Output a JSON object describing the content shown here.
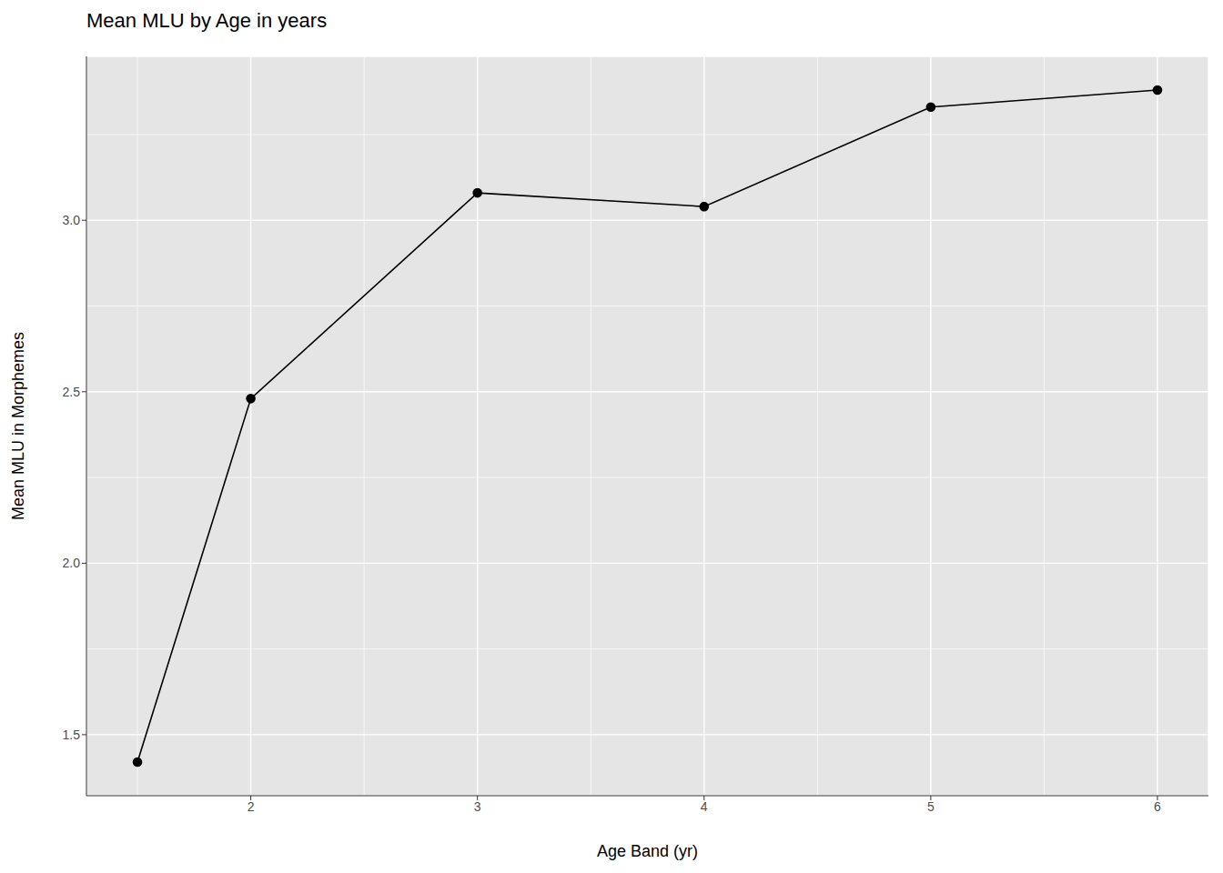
{
  "chart_data": {
    "type": "line",
    "title": "Mean MLU by Age in years",
    "x_label": "Age Band (yr)",
    "y_label": "Mean MLU in Morphemes",
    "x": [
      1.5,
      2,
      3,
      4,
      5,
      6
    ],
    "values": [
      1.42,
      2.48,
      3.08,
      3.04,
      3.33,
      3.38
    ],
    "color": "#000000",
    "marker": "circle",
    "xlim": [
      1.275,
      6.225
    ],
    "xticks": [
      2,
      3,
      4,
      5,
      6
    ],
    "ylim": [
      1.322,
      3.478
    ],
    "yticks": [
      1.5,
      {
        "value": 2.0,
        "label": "2.0"
      },
      2.5,
      {
        "value": 3.0,
        "label": "3.0"
      }
    ],
    "grid": true
  }
}
